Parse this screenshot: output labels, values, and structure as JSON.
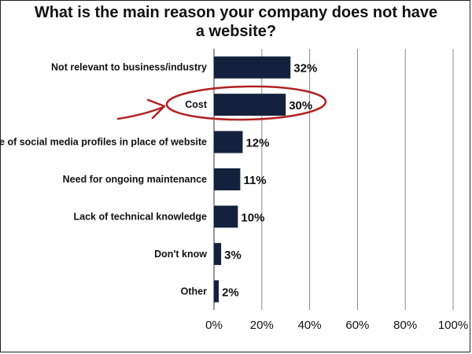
{
  "chart_data": {
    "type": "bar",
    "orientation": "horizontal",
    "title": "What is the main reason your company does not have a website?",
    "categories": [
      "Not relevant to business/industry",
      "Cost",
      "Use of social media profiles in place of website",
      "Need for ongoing maintenance",
      "Lack of technical knowledge",
      "Don't know",
      "Other"
    ],
    "values": [
      32,
      30,
      12,
      11,
      10,
      3,
      2
    ],
    "value_labels": [
      "32%",
      "30%",
      "12%",
      "11%",
      "10%",
      "3%",
      "2%"
    ],
    "xlim": [
      0,
      100
    ],
    "x_ticks": [
      0,
      20,
      40,
      60,
      80,
      100
    ],
    "x_tick_labels": [
      "0%",
      "20%",
      "40%",
      "60%",
      "80%",
      "100%"
    ],
    "grid": "vertical",
    "bar_color": "#14213d",
    "gridline_color": "#888888",
    "annotations": [
      {
        "type": "hand-drawn circle and arrow",
        "target_category": "Cost",
        "color": "#b22222"
      }
    ]
  }
}
